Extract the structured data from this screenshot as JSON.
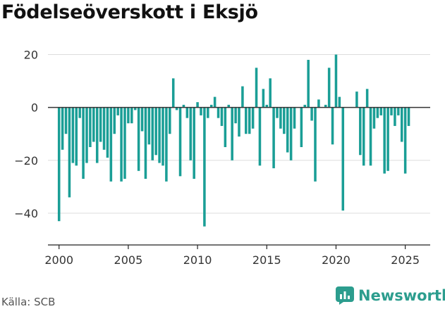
{
  "title": "Födelseöverskott i Eksjö",
  "source": "Källa: SCB",
  "brand": "Newsworthy",
  "colors": {
    "bar": "#1a9e96",
    "brand": "#2c9d8e",
    "zero_line": "#333333",
    "grid": "#dddddd"
  },
  "chart_data": {
    "type": "bar",
    "x_unit": "quarter",
    "xlim": [
      1999.2,
      2026.8
    ],
    "ylim": [
      -52,
      22
    ],
    "y_ticks": [
      20,
      0,
      -20,
      -40
    ],
    "y_tick_labels": [
      "20",
      "0",
      "−20",
      "−40"
    ],
    "x_ticks": [
      2000,
      2005,
      2010,
      2015,
      2020,
      2025
    ],
    "x_tick_labels": [
      "2000",
      "2005",
      "2010",
      "2015",
      "2020",
      "2025"
    ],
    "grid": "horizontal",
    "series": [
      {
        "start": 2000.0,
        "values": [
          -43,
          -16,
          -10,
          -34,
          -21,
          -22,
          -4,
          -27,
          -21,
          -15,
          -13,
          -21,
          -13,
          -16,
          -19,
          -28,
          -10,
          -3,
          -28,
          -27,
          -6,
          -6,
          -1,
          -24,
          -9,
          -27,
          -14,
          -20,
          -18,
          -21,
          -22,
          -28,
          -10,
          11,
          -1,
          -26,
          1,
          -4,
          -20,
          -27,
          2,
          -3,
          -45,
          -4,
          1,
          4,
          -4,
          -7,
          -15,
          1,
          -20,
          -6,
          -11,
          8,
          -10,
          -10,
          -8,
          15,
          -22,
          7,
          1,
          11,
          -23,
          -4,
          -8,
          -10,
          -17,
          -20,
          -8,
          0,
          -15,
          1,
          18,
          -5,
          -28,
          3,
          0,
          1,
          15,
          -14,
          20,
          4,
          -39,
          0,
          0,
          0,
          6,
          -18,
          -22,
          7,
          -22,
          -8,
          -4,
          -3,
          -25,
          -24,
          -3,
          -7,
          -3,
          -13,
          -25,
          -7
        ]
      }
    ]
  }
}
